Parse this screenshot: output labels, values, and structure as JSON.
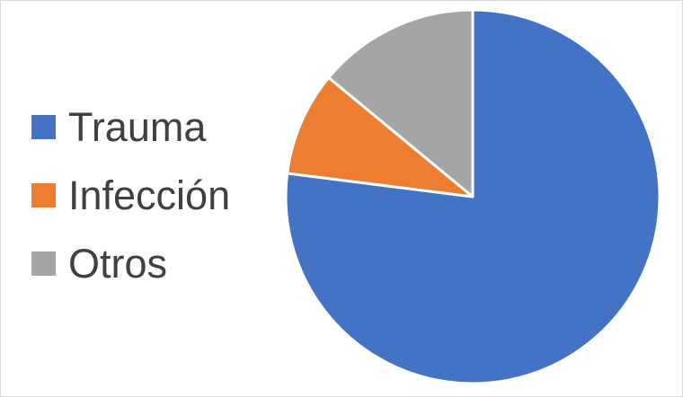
{
  "chart_data": {
    "type": "pie",
    "title": "",
    "categories": [
      "Trauma",
      "Infección",
      "Otros"
    ],
    "values": [
      77,
      9,
      14
    ],
    "colors": [
      "#4472c4",
      "#ed7d31",
      "#a5a5a5"
    ],
    "start_angle_deg": 0,
    "direction": "clockwise",
    "legend_position": "left"
  }
}
